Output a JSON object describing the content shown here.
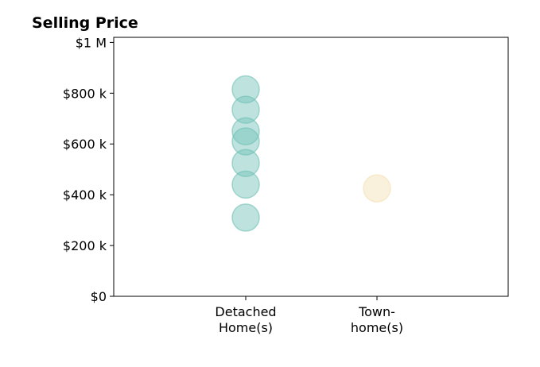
{
  "chart_data": {
    "type": "scatter",
    "title": "Selling Price",
    "xlabel": "",
    "ylabel": "",
    "categories": [
      [
        "Detached",
        "Home(s)"
      ],
      [
        "Town-",
        "home(s)"
      ]
    ],
    "y_ticks": [
      {
        "value": 0,
        "label": "$0"
      },
      {
        "value": 200000,
        "label": "$200 k"
      },
      {
        "value": 400000,
        "label": "$400 k"
      },
      {
        "value": 600000,
        "label": "$600 k"
      },
      {
        "value": 800000,
        "label": "$800 k"
      },
      {
        "value": 1000000,
        "label": "$1 M"
      }
    ],
    "ylim": [
      0,
      1020000
    ],
    "grid": false,
    "series": [
      {
        "category_index": 0,
        "color": "#6fc0b6",
        "values": [
          815000,
          735000,
          650000,
          610000,
          525000,
          440000,
          310000
        ]
      },
      {
        "category_index": 1,
        "color": "#f3e0b3",
        "values": [
          425000
        ]
      }
    ]
  }
}
